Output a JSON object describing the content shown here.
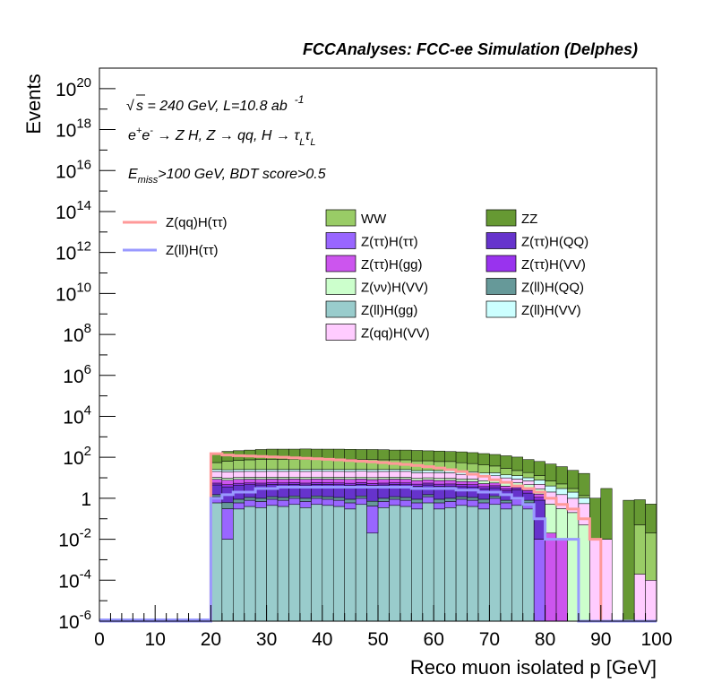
{
  "chart_data": {
    "type": "area",
    "title": "FCCAnalyses: FCC-ee Simulation (Delphes)",
    "xlabel": "Reco muon isolated p [GeV]",
    "ylabel": "Events",
    "xlim": [
      0,
      100
    ],
    "ylim": [
      1e-06,
      1e+21
    ],
    "yscale": "log",
    "stacked": true,
    "bin_width": 2,
    "x_ticks": [
      "0",
      "10",
      "20",
      "30",
      "40",
      "50",
      "60",
      "70",
      "80",
      "90",
      "100"
    ],
    "y_ticks": [
      {
        "v": 1e-06,
        "base": "10",
        "exp": "-6"
      },
      {
        "v": 0.0001,
        "base": "10",
        "exp": "-4"
      },
      {
        "v": 0.01,
        "base": "10",
        "exp": "-2"
      },
      {
        "v": 1,
        "base": "1",
        "exp": ""
      },
      {
        "v": 100.0,
        "base": "10",
        "exp": "2"
      },
      {
        "v": 10000.0,
        "base": "10",
        "exp": "4"
      },
      {
        "v": 1000000.0,
        "base": "10",
        "exp": "6"
      },
      {
        "v": 100000000.0,
        "base": "10",
        "exp": "8"
      },
      {
        "v": 10000000000.0,
        "base": "10",
        "exp": "10"
      },
      {
        "v": 1000000000000.0,
        "base": "10",
        "exp": "12"
      },
      {
        "v": 100000000000000.0,
        "base": "10",
        "exp": "14"
      },
      {
        "v": 1e+16,
        "base": "10",
        "exp": "16"
      },
      {
        "v": 1e+18,
        "base": "10",
        "exp": "18"
      },
      {
        "v": 1e+20,
        "base": "10",
        "exp": "20"
      }
    ],
    "annotations": {
      "line1_a": "s",
      "line1_b": " = 240 GeV, L=10.8 ab",
      "line1_sup": "-1",
      "line2": "e⁺e⁻ → Z H, Z → qq, H → τ_L τ_L",
      "line3_a": "E",
      "line3_sub": "miss",
      "line3_b": ">100 GeV, BDT score>0.5"
    },
    "stack_order_bottom_to_top": [
      "Z(ll)H(gg)",
      "Z(ττ)H(ττ)",
      "Z(ll)H(QQ)",
      "Z(ττ)H(QQ)",
      "Z(ττ)H(VV)",
      "Z(ττ)H(gg)",
      "Z(νν)H(VV)",
      "Z(qq)H(VV)",
      "Z(ll)H(VV)",
      "WW",
      "ZZ"
    ],
    "stack_series": [
      {
        "name": "Z(ll)H(gg)",
        "color": "#99cccc",
        "values": [
          0,
          0,
          0,
          0,
          0,
          0,
          0,
          0,
          0,
          0,
          0.6,
          0.01,
          0.3,
          0.4,
          0.35,
          0.45,
          0.4,
          0.5,
          0.35,
          0.5,
          0.45,
          0.4,
          0.3,
          0.5,
          0.02,
          0.35,
          0.45,
          0.4,
          0.3,
          0.6,
          0.3,
          0.35,
          0.45,
          0.4,
          0.3,
          0.5,
          0.3,
          0.45,
          0.3,
          0,
          0,
          0,
          0,
          0,
          0,
          0,
          0,
          0,
          0,
          0
        ]
      },
      {
        "name": "Z(ττ)H(ττ)",
        "color": "#9966ff",
        "values": [
          0,
          0,
          0,
          0,
          0,
          0,
          0,
          0,
          0,
          0,
          0.6,
          0.3,
          0.3,
          0.4,
          0.35,
          0.45,
          0.4,
          0.5,
          0.35,
          0.5,
          0.45,
          0.4,
          0.3,
          0.5,
          0.4,
          0.35,
          0.45,
          0.4,
          0.3,
          0.6,
          0.3,
          0.35,
          0.45,
          0.4,
          0.3,
          0.5,
          0.3,
          0.45,
          0.3,
          0.01,
          0,
          0,
          0,
          0,
          0,
          0,
          0,
          0,
          0,
          0
        ]
      },
      {
        "name": "Z(ll)H(QQ)",
        "color": "#669999",
        "values": [
          0,
          0,
          0,
          0,
          0,
          0,
          0,
          0,
          0,
          0,
          0.3,
          0.3,
          0.3,
          0.3,
          0.3,
          0.3,
          0.3,
          0.3,
          0.3,
          0.3,
          0.3,
          0.3,
          0.3,
          0.3,
          0.3,
          0.3,
          0.3,
          0.3,
          0.3,
          0.3,
          0.3,
          0.3,
          0.3,
          0.3,
          0.3,
          0.3,
          0.2,
          0.2,
          0.2,
          0,
          0,
          0,
          0,
          0,
          0,
          0,
          0,
          0,
          0,
          0
        ]
      },
      {
        "name": "Z(ττ)H(QQ)",
        "color": "#6633cc",
        "values": [
          0,
          0,
          0,
          0,
          0,
          0,
          0,
          0,
          0,
          0,
          3,
          3,
          3.5,
          3.5,
          3.5,
          3.5,
          3.5,
          3.5,
          3.5,
          3.5,
          3.5,
          3.5,
          3.5,
          3.5,
          3.5,
          3.5,
          3.5,
          3.5,
          3,
          3,
          3,
          3,
          2.5,
          2.5,
          2,
          2,
          1.5,
          1.5,
          1,
          0.8,
          0,
          0,
          0,
          0,
          0,
          0,
          0,
          0,
          0,
          0
        ]
      },
      {
        "name": "Z(ττ)H(VV)",
        "color": "#9933ee",
        "values": [
          0,
          0,
          0,
          0,
          0,
          0,
          0,
          0,
          0,
          0,
          1,
          1,
          1,
          1,
          1,
          1,
          1,
          1,
          1,
          1,
          1,
          1,
          1,
          1,
          1,
          1,
          1,
          1,
          1,
          1,
          1,
          1,
          1,
          1,
          0.8,
          0.8,
          0.6,
          0.6,
          0.5,
          0.3,
          0,
          0,
          0,
          0,
          0,
          0,
          0,
          0,
          0,
          0
        ]
      },
      {
        "name": "Z(ττ)H(gg)",
        "color": "#cc55ee",
        "values": [
          0,
          0,
          0,
          0,
          0,
          0,
          0,
          0,
          0,
          0,
          3,
          3,
          3,
          3,
          3,
          3,
          3,
          3,
          3,
          3,
          3,
          3,
          3,
          3,
          3,
          3,
          3,
          3,
          2.5,
          2.5,
          2.5,
          2.5,
          2,
          2,
          1.5,
          1.5,
          1,
          1,
          0.8,
          0.5,
          0.02,
          0.01,
          0,
          0,
          0,
          0,
          0,
          0,
          0,
          0
        ]
      },
      {
        "name": "Z(νν)H(VV)",
        "color": "#ccffcc",
        "values": [
          0,
          0,
          0,
          0,
          0,
          0,
          0,
          0,
          0,
          0,
          2,
          2,
          2,
          2,
          2,
          2,
          2,
          2,
          2,
          2,
          2,
          2,
          2,
          2,
          2,
          2,
          2,
          2,
          2,
          2,
          2,
          2,
          2,
          2,
          2,
          2,
          2,
          1.5,
          1.5,
          1.2,
          0.5,
          0.3,
          0.2,
          0.05,
          0,
          0,
          0,
          0,
          0,
          0
        ]
      },
      {
        "name": "Z(qq)H(VV)",
        "color": "#ffccff",
        "values": [
          0,
          0,
          0,
          0,
          0,
          0,
          0,
          0,
          0,
          0,
          10,
          10,
          10,
          10,
          10,
          10,
          10,
          10,
          10,
          10,
          10,
          10,
          10,
          10,
          10,
          10,
          10,
          10,
          8,
          8,
          8,
          8,
          6,
          6,
          5,
          5,
          4,
          3,
          2.5,
          2,
          1.5,
          1.2,
          0.8,
          0.5,
          0.01,
          0.01,
          0,
          0,
          0.0002,
          0.0001
        ]
      },
      {
        "name": "Z(ll)H(VV)",
        "color": "#ccffff",
        "values": [
          0,
          0,
          0,
          0,
          0,
          0,
          0,
          0,
          0,
          0,
          5,
          5,
          5,
          5,
          5,
          5,
          5,
          5,
          5,
          5,
          5,
          5,
          5,
          5,
          5,
          5,
          5,
          5,
          5,
          5,
          5,
          5,
          5,
          5,
          5,
          5,
          4,
          4,
          3,
          3,
          2,
          1.5,
          1,
          0.5,
          0,
          0,
          0,
          0,
          0,
          0
        ]
      },
      {
        "name": "WW",
        "color": "#99cc66",
        "values": [
          0,
          0,
          0,
          0,
          0,
          0,
          0,
          0,
          0,
          0,
          30,
          40,
          45,
          50,
          55,
          55,
          55,
          55,
          55,
          55,
          55,
          55,
          55,
          55,
          55,
          50,
          50,
          50,
          45,
          45,
          40,
          40,
          35,
          30,
          25,
          20,
          15,
          10,
          8,
          5,
          3,
          2,
          1,
          0.3,
          0,
          0,
          0,
          0,
          0.05,
          0.02
        ]
      },
      {
        "name": "ZZ",
        "color": "#669933",
        "values": [
          0,
          0,
          0,
          0,
          0,
          0,
          0,
          0,
          0,
          0,
          100,
          130,
          140,
          150,
          160,
          170,
          170,
          170,
          175,
          170,
          170,
          170,
          165,
          160,
          160,
          160,
          150,
          150,
          150,
          140,
          140,
          130,
          130,
          120,
          110,
          100,
          90,
          80,
          60,
          50,
          40,
          30,
          20,
          15,
          1,
          3,
          0,
          0.8,
          0.8,
          0.5
        ]
      }
    ],
    "line_series": [
      {
        "name": "Z(qq)H(ττ)",
        "color": "#ff9999",
        "values": [
          0,
          0,
          0,
          0,
          0,
          0,
          0,
          0,
          0,
          0,
          150,
          130,
          120,
          115,
          110,
          105,
          100,
          95,
          90,
          85,
          80,
          75,
          70,
          65,
          60,
          55,
          50,
          45,
          40,
          35,
          30,
          25,
          20,
          15,
          12,
          8,
          6,
          4,
          3,
          2,
          1,
          0.5,
          0.3,
          0.1,
          0.01,
          0,
          0,
          0,
          0,
          0
        ]
      },
      {
        "name": "Z(ll)H(ττ)",
        "color": "#9999ff",
        "values": [
          0,
          0,
          0,
          0,
          0,
          0,
          0,
          0,
          0,
          0,
          1,
          1.5,
          2,
          2,
          3,
          3,
          3.5,
          3.5,
          3.5,
          3.5,
          3.5,
          3.5,
          3.5,
          3.5,
          3.5,
          3.5,
          3.5,
          3.5,
          3,
          3,
          3,
          3,
          2.5,
          2.5,
          2,
          2,
          1.5,
          1,
          0.5,
          0.1,
          0.01,
          0.01,
          0.01,
          0,
          0,
          0,
          0,
          0,
          0,
          0
        ]
      }
    ],
    "legend": {
      "lines": [
        {
          "label": "Z(qq)H(ττ)",
          "color": "#ff9999"
        },
        {
          "label": "Z(ll)H(ττ)",
          "color": "#9999ff"
        }
      ],
      "boxes": [
        {
          "label": "WW",
          "color": "#99cc66"
        },
        {
          "label": "ZZ",
          "color": "#669933"
        },
        {
          "label": "Z(ττ)H(ττ)",
          "color": "#9966ff"
        },
        {
          "label": "Z(ττ)H(QQ)",
          "color": "#6633cc"
        },
        {
          "label": "Z(ττ)H(gg)",
          "color": "#cc55ee"
        },
        {
          "label": "Z(ττ)H(VV)",
          "color": "#9933ee"
        },
        {
          "label": "Z(νν)H(VV)",
          "color": "#ccffcc"
        },
        {
          "label": "Z(ll)H(QQ)",
          "color": "#669999"
        },
        {
          "label": "Z(ll)H(gg)",
          "color": "#99cccc"
        },
        {
          "label": "Z(ll)H(VV)",
          "color": "#ccffff"
        },
        {
          "label": "Z(qq)H(VV)",
          "color": "#ffccff"
        }
      ]
    }
  }
}
